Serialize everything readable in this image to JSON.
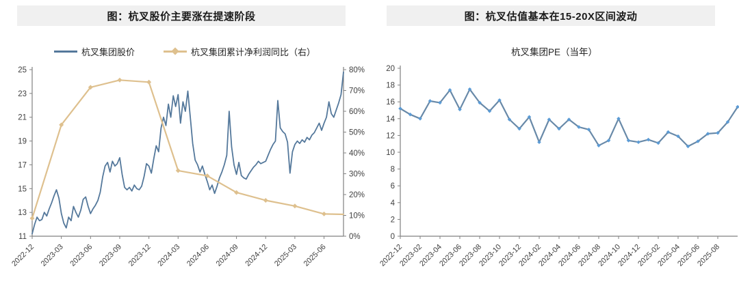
{
  "panels": {
    "left": {
      "title": "图：杭叉股价主要涨在提速阶段"
    },
    "right": {
      "title": "图：杭叉估值基本在15-20X区间波动",
      "subtitle": "杭叉集团PE（当年）"
    }
  },
  "colors": {
    "stock_line": "#54789b",
    "profit_line": "#dec08e",
    "pe_line": "#6889a8",
    "pe_marker": "#5b9bd5",
    "axis_line": "#808080",
    "axis_text": "#404040",
    "title_bar_bg": "#f0f0f0"
  },
  "chart_data": [
    {
      "id": "price-vs-profit",
      "type": "line",
      "title": "图：杭叉股价主要涨在提速阶段",
      "grid": false,
      "legend_position": "top",
      "x_unit": "months since 2022-12",
      "x_max": 32,
      "x_tick_positions": [
        0,
        3,
        6,
        9,
        12,
        15,
        18,
        21,
        24,
        27,
        30
      ],
      "x_tick_labels": [
        "2022-12",
        "2023-03",
        "2023-06",
        "2023-09",
        "2023-12",
        "2024-03",
        "2024-06",
        "2024-09",
        "2024-12",
        "2025-03",
        "2025-06"
      ],
      "left_axis": {
        "min": 11,
        "max": 25,
        "step": 2,
        "suffix": ""
      },
      "right_axis": {
        "min": 0,
        "max": 80,
        "step": 10,
        "suffix": "%"
      },
      "series": [
        {
          "name": "杭叉集团股价",
          "axis": "left",
          "color": "#54789b",
          "width": 1.8,
          "marker": "none",
          "x_start": 0,
          "x_step": 0.25,
          "values": [
            11.2,
            12.0,
            12.6,
            12.3,
            12.4,
            13.0,
            12.7,
            13.3,
            13.8,
            14.4,
            14.9,
            14.2,
            12.9,
            12.1,
            11.7,
            12.6,
            12.3,
            13.5,
            13.0,
            12.6,
            13.2,
            14.1,
            14.3,
            13.5,
            12.9,
            13.3,
            13.6,
            14.0,
            14.7,
            16.0,
            16.9,
            17.2,
            16.4,
            17.3,
            16.9,
            17.1,
            17.6,
            16.2,
            15.1,
            14.9,
            15.1,
            14.8,
            15.3,
            15.0,
            14.9,
            15.2,
            16.0,
            17.1,
            16.9,
            16.3,
            17.5,
            18.6,
            18.1,
            20.1,
            21.0,
            20.3,
            22.1,
            21.0,
            22.8,
            21.9,
            22.9,
            20.5,
            22.3,
            21.5,
            23.2,
            21.0,
            18.8,
            17.4,
            17.0,
            16.4,
            16.9,
            16.2,
            15.6,
            14.9,
            15.3,
            14.6,
            15.2,
            15.9,
            16.4,
            17.0,
            17.8,
            21.5,
            18.5,
            17.0,
            16.2,
            17.2,
            16.1,
            15.9,
            15.8,
            16.2,
            16.5,
            16.8,
            17.0,
            17.3,
            17.1,
            17.2,
            17.3,
            17.8,
            18.3,
            18.7,
            19.0,
            22.4,
            20.1,
            19.8,
            19.6,
            18.9,
            16.3,
            18.1,
            18.7,
            19.0,
            18.8,
            19.1,
            18.9,
            19.3,
            19.1,
            19.5,
            19.7,
            20.1,
            20.5,
            19.9,
            20.5,
            21.0,
            22.3,
            21.3,
            21.0,
            21.6,
            22.2,
            22.9,
            24.8
          ]
        },
        {
          "name": "杭叉集团累计净利润同比（右）",
          "axis": "right",
          "color": "#dec08e",
          "width": 2.2,
          "marker": "diamond",
          "marker_size": 3.5,
          "marker_skip_last": true,
          "x": [
            0,
            3,
            6,
            9,
            12,
            15,
            18,
            21,
            24,
            27,
            30,
            32
          ],
          "values": [
            8.6,
            53.5,
            71.5,
            75.0,
            74.0,
            31.5,
            29.0,
            21.0,
            17.2,
            14.5,
            10.7,
            10.5
          ]
        }
      ]
    },
    {
      "id": "pe-ttm",
      "type": "line",
      "title": "杭叉集团PE（当年）",
      "grid": false,
      "x_unit": "months since 2022-12",
      "x_max": 34,
      "x_tick_positions": [
        0,
        2,
        4,
        6,
        8,
        10,
        12,
        14,
        16,
        18,
        20,
        22,
        24,
        26,
        28,
        30,
        32
      ],
      "x_tick_labels": [
        "2022-12",
        "2023-02",
        "2023-04",
        "2023-06",
        "2023-08",
        "2023-10",
        "2023-12",
        "2024-02",
        "2024-04",
        "2024-06",
        "2024-08",
        "2024-10",
        "2024-12",
        "2025-02",
        "2025-04",
        "2025-06",
        "2025-08"
      ],
      "left_axis": {
        "min": 0,
        "max": 20,
        "step": 2,
        "suffix": ""
      },
      "series": [
        {
          "name": "杭叉集团PE（当年）",
          "axis": "left",
          "color": "#6889a8",
          "width": 2.2,
          "marker": "diamond",
          "marker_size": 2.8,
          "marker_color": "#5b9bd5",
          "x_start": 0,
          "x_step": 1,
          "values": [
            15.2,
            14.5,
            14.0,
            16.1,
            15.9,
            17.4,
            15.1,
            17.5,
            15.9,
            14.9,
            16.2,
            13.9,
            12.8,
            14.2,
            11.2,
            13.9,
            12.8,
            13.9,
            13.0,
            12.7,
            10.8,
            11.4,
            14.0,
            11.4,
            11.2,
            11.5,
            11.1,
            12.4,
            11.9,
            10.7,
            11.3,
            12.2,
            12.3,
            13.6,
            15.4
          ]
        }
      ]
    }
  ]
}
